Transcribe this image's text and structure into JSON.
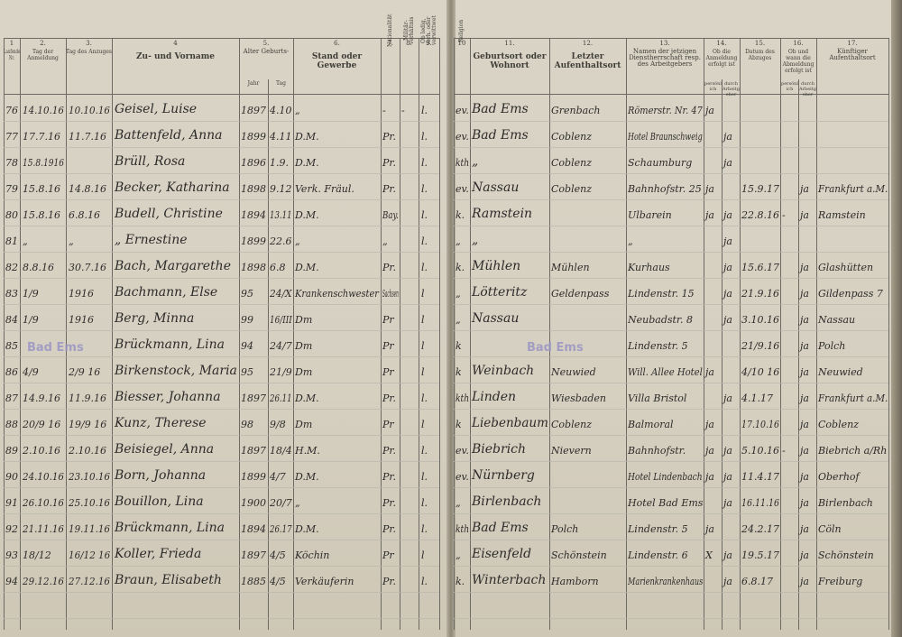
{
  "left_header": [
    {
      "num": "1",
      "label": "Laufende Nr."
    },
    {
      "num": "2.",
      "label": "Tag der Anmeldung"
    },
    {
      "num": "3.",
      "label": "Tag des Anzuges"
    },
    {
      "num": "4",
      "label": "Zu- und Vorname"
    },
    {
      "num": "5.",
      "label": "Alter Geburts-"
    },
    {
      "num": "6.",
      "label": "Stand oder Gewerbe"
    },
    {
      "num": "7.",
      "label": "Nationalität"
    },
    {
      "num": "8.",
      "label": "Militär-verhältnis"
    },
    {
      "num": "9.",
      "label": "Ob ledig, verh. oder verwittwet"
    }
  ],
  "left_subheader": {
    "jahr": "Jahr",
    "tag": "Tag"
  },
  "right_header": [
    {
      "num": "10",
      "label": "Religion"
    },
    {
      "num": "11.",
      "label": "Geburtsort oder Wohnort"
    },
    {
      "num": "12.",
      "label": "Letzter Aufenthaltsort"
    },
    {
      "num": "13.",
      "label": "Namen der jetzigen Dienstherrschaft resp. des Arbeitgebers"
    },
    {
      "num": "14.",
      "label": "Ob die Anmeldung erfolgt ist"
    },
    {
      "num": "15.",
      "label": "Datum des Abzuges"
    },
    {
      "num": "16.",
      "label": "Ob und wann die Abmeldung erfolgt ist"
    },
    {
      "num": "17.",
      "label": "Künftiger Aufenthaltsort"
    }
  ],
  "right_subheader": {
    "a": "persönlich",
    "b": "durch Arbeitgeber",
    "c": "persönlich",
    "d": "durch Arbeitgeber"
  },
  "rows": [
    {
      "nr": "76",
      "anm": "14.10.16",
      "anz": "10.10.16",
      "name": "Geisel, Luise",
      "jahr": "1897",
      "tag": "4.10",
      "stand": "„",
      "nat": "-",
      "mil": "-",
      "fam": "l.",
      "rel": "ev.",
      "geb": "Bad Ems",
      "letzt": "Grenbach",
      "dienst": "Römerstr. Nr. 47",
      "p1": "ja",
      "p2": "",
      "abz": "",
      "ab1": "",
      "ab2": "",
      "kuenft": ""
    },
    {
      "nr": "77",
      "anm": "17.7.16",
      "anz": "11.7.16",
      "name": "Battenfeld, Anna",
      "jahr": "1899",
      "tag": "4.11",
      "stand": "D.M.",
      "nat": "Pr.",
      "mil": "",
      "fam": "l.",
      "rel": "ev.",
      "geb": "Bad Ems",
      "letzt": "Coblenz",
      "dienst": "Hotel Braunschweig",
      "p1": "",
      "p2": "ja",
      "abz": "",
      "ab1": "",
      "ab2": "",
      "kuenft": ""
    },
    {
      "nr": "78",
      "anm": "15.8.1916",
      "anz": "",
      "name": "Brüll, Rosa",
      "jahr": "1896",
      "tag": "1.9.",
      "stand": "D.M.",
      "nat": "Pr.",
      "mil": "",
      "fam": "l.",
      "rel": "kth",
      "geb": "„",
      "letzt": "Coblenz",
      "dienst": "Schaumburg",
      "p1": "",
      "p2": "ja",
      "abz": "",
      "ab1": "",
      "ab2": "",
      "kuenft": ""
    },
    {
      "nr": "79",
      "anm": "15.8.16",
      "anz": "14.8.16",
      "name": "Becker, Katharina",
      "jahr": "1898",
      "tag": "9.12",
      "stand": "Verk. Fräul.",
      "nat": "Pr.",
      "mil": "",
      "fam": "l.",
      "rel": "ev.",
      "geb": "Nassau",
      "letzt": "Coblenz",
      "dienst": "Bahnhofstr. 25",
      "p1": "ja",
      "p2": "",
      "abz": "15.9.17",
      "ab1": "",
      "ab2": "ja",
      "kuenft": "Frankfurt a.M."
    },
    {
      "nr": "80",
      "anm": "15.8.16",
      "anz": "6.8.16",
      "name": "Budell, Christine",
      "jahr": "1894",
      "tag": "13.11",
      "stand": "D.M.",
      "nat": "Bay.",
      "mil": "",
      "fam": "l.",
      "rel": "k.",
      "geb": "Ramstein",
      "letzt": "",
      "dienst": "Ulbarein",
      "p1": "ja",
      "p2": "ja",
      "abz": "22.8.16",
      "ab1": "-",
      "ab2": "ja",
      "kuenft": "Ramstein"
    },
    {
      "nr": "81",
      "anm": "„",
      "anz": "„",
      "name": "„ Ernestine",
      "jahr": "1899",
      "tag": "22.6",
      "stand": "„",
      "nat": "„",
      "mil": "",
      "fam": "l.",
      "rel": "„",
      "geb": "„",
      "letzt": "",
      "dienst": "„",
      "p1": "",
      "p2": "ja",
      "abz": "",
      "ab1": "",
      "ab2": "",
      "kuenft": ""
    },
    {
      "nr": "82",
      "anm": "8.8.16",
      "anz": "30.7.16",
      "name": "Bach, Margarethe",
      "jahr": "1898",
      "tag": "6.8",
      "stand": "D.M.",
      "nat": "Pr.",
      "mil": "",
      "fam": "l.",
      "rel": "k.",
      "geb": "Mühlen",
      "letzt": "Mühlen",
      "dienst": "Kurhaus",
      "p1": "",
      "p2": "ja",
      "abz": "15.6.17",
      "ab1": "",
      "ab2": "ja",
      "kuenft": "Glashütten"
    },
    {
      "nr": "83",
      "anm": "1/9",
      "anz": "1916",
      "name": "Bachmann, Else",
      "jahr": "95",
      "tag": "24/X",
      "stand": "Krankenschwester",
      "nat": "Sachsen",
      "mil": "",
      "fam": "l",
      "rel": "„",
      "geb": "Lötteritz",
      "letzt": "Geldenpass",
      "dienst": "Lindenstr. 15",
      "p1": "",
      "p2": "ja",
      "abz": "21.9.16",
      "ab1": "",
      "ab2": "ja",
      "kuenft": "Gildenpass 7"
    },
    {
      "nr": "84",
      "anm": "1/9",
      "anz": "1916",
      "name": "Berg, Minna",
      "jahr": "99",
      "tag": "16/III",
      "stand": "Dm",
      "nat": "Pr",
      "mil": "",
      "fam": "l",
      "rel": "„",
      "geb": "Nassau",
      "letzt": "",
      "dienst": "Neubadstr. 8",
      "p1": "",
      "p2": "ja",
      "abz": "3.10.16",
      "ab1": "",
      "ab2": "ja",
      "kuenft": "Nassau"
    },
    {
      "nr": "85",
      "anm": "",
      "anz": "",
      "name": "Brückmann, Lina",
      "jahr": "94",
      "tag": "24/7",
      "stand": "Dm",
      "nat": "Pr",
      "mil": "",
      "fam": "l",
      "rel": "k",
      "geb": "",
      "letzt": "",
      "dienst": "Lindenstr. 5",
      "p1": "",
      "p2": "",
      "abz": "21/9.16",
      "ab1": "",
      "ab2": "ja",
      "kuenft": "Polch"
    },
    {
      "nr": "86",
      "anm": "4/9",
      "anz": "2/9 16",
      "name": "Birkenstock, Maria",
      "jahr": "95",
      "tag": "21/9",
      "stand": "Dm",
      "nat": "Pr",
      "mil": "",
      "fam": "l",
      "rel": "k",
      "geb": "Weinbach",
      "letzt": "Neuwied",
      "dienst": "Will. Allee Hotel",
      "p1": "ja",
      "p2": "",
      "abz": "4/10 16",
      "ab1": "",
      "ab2": "ja",
      "kuenft": "Neuwied"
    },
    {
      "nr": "87",
      "anm": "14.9.16",
      "anz": "11.9.16",
      "name": "Biesser, Johanna",
      "jahr": "1897",
      "tag": "26.11",
      "stand": "D.M.",
      "nat": "Pr.",
      "mil": "",
      "fam": "l.",
      "rel": "kth",
      "geb": "Linden",
      "letzt": "Wiesbaden",
      "dienst": "Villa Bristol",
      "p1": "",
      "p2": "ja",
      "abz": "4.1.17",
      "ab1": "",
      "ab2": "ja",
      "kuenft": "Frankfurt a.M."
    },
    {
      "nr": "88",
      "anm": "20/9 16",
      "anz": "19/9 16",
      "name": "Kunz, Therese",
      "jahr": "98",
      "tag": "9/8",
      "stand": "Dm",
      "nat": "Pr",
      "mil": "",
      "fam": "l",
      "rel": "k",
      "geb": "Liebenbaum",
      "letzt": "Coblenz",
      "dienst": "Balmoral",
      "p1": "ja",
      "p2": "",
      "abz": "17.10.16",
      "ab1": "",
      "ab2": "ja",
      "kuenft": "Coblenz"
    },
    {
      "nr": "89",
      "anm": "2.10.16",
      "anz": "2.10.16",
      "name": "Beisiegel, Anna",
      "jahr": "1897",
      "tag": "18/4",
      "stand": "H.M.",
      "nat": "Pr.",
      "mil": "",
      "fam": "l.",
      "rel": "ev.",
      "geb": "Biebrich",
      "letzt": "Nievern",
      "dienst": "Bahnhofstr.",
      "p1": "ja",
      "p2": "ja",
      "abz": "5.10.16",
      "ab1": "-",
      "ab2": "ja",
      "kuenft": "Biebrich a/Rh"
    },
    {
      "nr": "90",
      "anm": "24.10.16",
      "anz": "23.10.16",
      "name": "Born, Johanna",
      "jahr": "1899",
      "tag": "4/7",
      "stand": "D.M.",
      "nat": "Pr.",
      "mil": "",
      "fam": "l.",
      "rel": "ev.",
      "geb": "Nürnberg",
      "letzt": "",
      "dienst": "Hotel Lindenbach",
      "p1": "ja",
      "p2": "ja",
      "abz": "11.4.17",
      "ab1": "",
      "ab2": "ja",
      "kuenft": "Oberhof"
    },
    {
      "nr": "91",
      "anm": "26.10.16",
      "anz": "25.10.16",
      "name": "Bouillon, Lina",
      "jahr": "1900",
      "tag": "20/7",
      "stand": "„",
      "nat": "Pr.",
      "mil": "",
      "fam": "l.",
      "rel": "„",
      "geb": "Birlenbach",
      "letzt": "",
      "dienst": "Hotel Bad Ems",
      "p1": "",
      "p2": "ja",
      "abz": "16.11.16",
      "ab1": "",
      "ab2": "ja",
      "kuenft": "Birlenbach"
    },
    {
      "nr": "92",
      "anm": "21.11.16",
      "anz": "19.11.16",
      "name": "Brückmann, Lina",
      "jahr": "1894",
      "tag": "26.17",
      "stand": "D.M.",
      "nat": "Pr.",
      "mil": "",
      "fam": "l.",
      "rel": "kth",
      "geb": "Bad Ems",
      "letzt": "Polch",
      "dienst": "Lindenstr. 5",
      "p1": "ja",
      "p2": "",
      "abz": "24.2.17",
      "ab1": "",
      "ab2": "ja",
      "kuenft": "Cöln"
    },
    {
      "nr": "93",
      "anm": "18/12",
      "anz": "16/12 16",
      "name": "Koller, Frieda",
      "jahr": "1897",
      "tag": "4/5",
      "stand": "Köchin",
      "nat": "Pr",
      "mil": "",
      "fam": "l",
      "rel": "„",
      "geb": "Eisenfeld",
      "letzt": "Schönstein",
      "dienst": "Lindenstr. 6",
      "p1": "X",
      "p2": "ja",
      "abz": "19.5.17",
      "ab1": "",
      "ab2": "ja",
      "kuenft": "Schönstein"
    },
    {
      "nr": "94",
      "anm": "29.12.16",
      "anz": "27.12.16",
      "name": "Braun, Elisabeth",
      "jahr": "1885",
      "tag": "4/5",
      "stand": "Verkäuferin",
      "nat": "Pr.",
      "mil": "",
      "fam": "l.",
      "rel": "k.",
      "geb": "Winterbach",
      "letzt": "Hamborn",
      "dienst": "Marienkrankenhaus",
      "p1": "",
      "p2": "ja",
      "abz": "6.8.17",
      "ab1": "",
      "ab2": "ja",
      "kuenft": "Freiburg"
    }
  ],
  "stamps": [
    "Bad Ems",
    "Bad Ems"
  ],
  "colors": {
    "paper": "#d8d2c4",
    "ink": "#2d2b2a",
    "stamp": "#9a95c4"
  }
}
